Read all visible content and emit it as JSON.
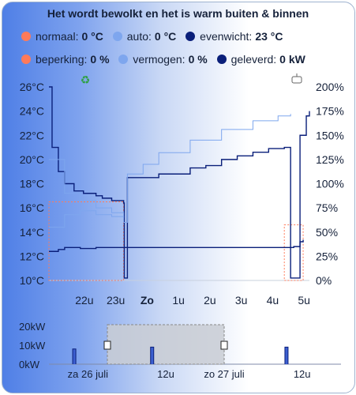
{
  "title": "Het wordt bewolkt en het is warm buiten & binnen",
  "legend_row1": [
    {
      "label": "normaal:",
      "value": "0 °C",
      "color": "#ff7a59"
    },
    {
      "label": "auto:",
      "value": "0 °C",
      "color": "#7ea6ee"
    },
    {
      "label": "evenwicht:",
      "value": "23 °C",
      "color": "#0a1f7a"
    }
  ],
  "legend_row2": [
    {
      "label": "beperking:",
      "value": "0 %",
      "color": "#ff7a59"
    },
    {
      "label": "vermogen:",
      "value": "0 %",
      "color": "#7ea6ee"
    },
    {
      "label": "geleverd:",
      "value": "0 kW",
      "color": "#0a1f7a"
    }
  ],
  "icons": {
    "recycle": "recycle-icon",
    "pump": "heat-pump-icon"
  },
  "chart_data": [
    {
      "type": "line",
      "left_axis_ticks": [
        "26°C",
        "24°C",
        "22°C",
        "20°C",
        "18°C",
        "16°C",
        "14°C",
        "12°C",
        "10°C"
      ],
      "right_axis_ticks": [
        "200%",
        "175%",
        "150%",
        "125%",
        "100%",
        "75%",
        "50%",
        "25%",
        "0%"
      ],
      "x_ticks": [
        "22u",
        "23u",
        "Zo",
        "1u",
        "2u",
        "3u",
        "4u",
        "5u"
      ],
      "x_bold": "Zo",
      "ylim_left": [
        10,
        26
      ],
      "ylim_right": [
        0,
        200
      ],
      "series": [
        {
          "color": "#0a1f7a",
          "axis": "left",
          "points": [
            [
              21.5,
              26
            ],
            [
              21.6,
              21
            ],
            [
              21.8,
              19
            ],
            [
              22.0,
              18
            ],
            [
              22.3,
              17.4
            ],
            [
              22.6,
              17.2
            ],
            [
              23.0,
              17.0
            ],
            [
              23.2,
              16.8
            ],
            [
              23.5,
              16.6
            ],
            [
              23.88,
              16.4
            ],
            [
              23.9,
              10.2
            ],
            [
              24.0,
              18.5
            ],
            [
              25.0,
              18.8
            ],
            [
              26.0,
              19.3
            ],
            [
              26.5,
              19.5
            ],
            [
              27.0,
              20.0
            ],
            [
              27.5,
              20.3
            ],
            [
              28.0,
              20.6
            ],
            [
              28.5,
              20.9
            ],
            [
              29.0,
              21.0
            ],
            [
              29.2,
              10.2
            ],
            [
              29.3,
              10.2
            ],
            [
              29.5,
              22.0
            ],
            [
              29.7,
              23.6
            ],
            [
              29.8,
              24.0
            ]
          ]
        },
        {
          "color": "#0a1f7a",
          "axis": "right",
          "points": [
            [
              21.5,
              30
            ],
            [
              21.8,
              32
            ],
            [
              22.0,
              34
            ],
            [
              22.5,
              33
            ],
            [
              23.0,
              34
            ],
            [
              23.5,
              34
            ],
            [
              23.88,
              34
            ],
            [
              29.2,
              34
            ],
            [
              29.3,
              35
            ],
            [
              29.5,
              40
            ],
            [
              29.6,
              42
            ]
          ]
        },
        {
          "color": "#7ea6ee",
          "axis": "right",
          "points": [
            [
              21.5,
              55
            ],
            [
              22.0,
              68
            ],
            [
              22.5,
              72
            ],
            [
              23.0,
              68
            ],
            [
              23.5,
              66
            ],
            [
              23.88,
              60
            ],
            [
              24.0,
              110
            ],
            [
              24.5,
              120
            ],
            [
              25.0,
              132
            ],
            [
              26.0,
              145
            ],
            [
              27.0,
              156
            ],
            [
              28.0,
              165
            ],
            [
              28.8,
              170
            ],
            [
              29.2,
              172
            ]
          ]
        },
        {
          "color": "#7ea6ee",
          "axis": "left",
          "points": [
            [
              21.5,
              20
            ],
            [
              22.0,
              17.2
            ],
            [
              22.5,
              16.6
            ],
            [
              23.0,
              16.0
            ],
            [
              23.5,
              15.6
            ],
            [
              23.88,
              15.2
            ]
          ]
        }
      ],
      "limit_boxes": [
        {
          "x": [
            21.5,
            23.88
          ],
          "y": [
            10,
            16.5
          ],
          "color": "#ff7a59"
        },
        {
          "x": [
            29.0,
            29.6
          ],
          "y": [
            10,
            14.6
          ],
          "color": "#ff7a59"
        }
      ]
    },
    {
      "type": "area",
      "y_ticks": [
        "20kW",
        "10kW",
        "0kW"
      ],
      "x_ticks": [
        "za 26 juli",
        "12u",
        "zo 27 juli",
        "12u"
      ],
      "ylim": [
        0,
        20
      ],
      "spikes": [
        [
          22.3,
          8
        ],
        [
          26.3,
          9
        ],
        [
          33.2,
          9
        ]
      ],
      "window": [
        24.0,
        30.0
      ]
    }
  ]
}
